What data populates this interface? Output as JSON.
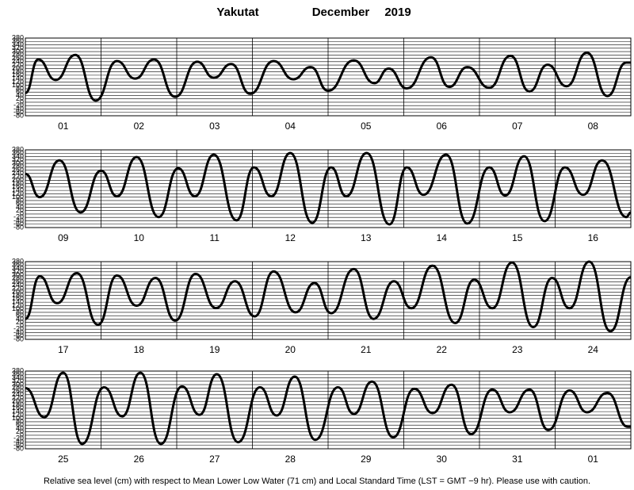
{
  "header": {
    "station": "Yakutat",
    "month": "December",
    "year": "2019"
  },
  "note": "Relative sea level (cm) with respect to Mean Lower Low Water (71 cm) and Local Standard Time (LST = GMT −9 hr). Please use with caution.",
  "chart_data": [
    {
      "type": "line",
      "categories": [
        "01",
        "02",
        "03",
        "04",
        "05",
        "06",
        "07",
        "08"
      ],
      "xlim": [
        0,
        8
      ],
      "ylim": [
        -80,
        380
      ],
      "yticks": [
        380,
        360,
        340,
        320,
        300,
        280,
        260,
        240,
        220,
        200,
        180,
        160,
        140,
        120,
        100,
        80,
        60,
        40,
        20,
        0,
        -20,
        -40,
        -60,
        -80
      ],
      "grid": true,
      "series": [
        {
          "color": "#000000",
          "x": [
            0,
            0.17,
            0.4,
            0.66,
            0.93,
            1.21,
            1.45,
            1.7,
            1.98,
            2.27,
            2.49,
            2.72,
            2.97,
            3.28,
            3.54,
            3.77,
            4.0,
            4.34,
            4.61,
            4.8,
            5.04,
            5.36,
            5.6,
            5.84,
            6.13,
            6.41,
            6.66,
            6.9,
            7.15,
            7.42,
            7.69,
            7.94,
            8.0
          ],
          "values": [
            55,
            253,
            132,
            280,
            10,
            244,
            140,
            253,
            32,
            240,
            145,
            226,
            50,
            244,
            136,
            208,
            68,
            248,
            113,
            199,
            82,
            266,
            91,
            208,
            86,
            275,
            64,
            222,
            95,
            293,
            37,
            235,
            235
          ]
        }
      ]
    },
    {
      "type": "line",
      "categories": [
        "09",
        "10",
        "11",
        "12",
        "13",
        "14",
        "15",
        "16"
      ],
      "xlim": [
        0,
        8
      ],
      "ylim": [
        -80,
        380
      ],
      "yticks": [
        380,
        360,
        340,
        320,
        300,
        280,
        260,
        240,
        220,
        200,
        180,
        160,
        140,
        120,
        100,
        80,
        60,
        40,
        20,
        0,
        -20,
        -40,
        -60,
        -80
      ],
      "grid": true,
      "series": [
        {
          "color": "#000000",
          "x": [
            0,
            0.19,
            0.45,
            0.73,
            1.0,
            1.21,
            1.47,
            1.76,
            2.02,
            2.24,
            2.49,
            2.79,
            3.02,
            3.25,
            3.5,
            3.79,
            4.04,
            4.24,
            4.51,
            4.81,
            5.04,
            5.26,
            5.56,
            5.84,
            6.13,
            6.34,
            6.59,
            6.86,
            7.13,
            7.37,
            7.62,
            7.94,
            8.0
          ],
          "values": [
            238,
            100,
            318,
            10,
            257,
            105,
            337,
            -18,
            271,
            105,
            351,
            -37,
            276,
            105,
            361,
            -52,
            276,
            105,
            361,
            -61,
            276,
            114,
            351,
            -56,
            276,
            110,
            342,
            -42,
            276,
            114,
            318,
            -18,
            10
          ]
        }
      ]
    },
    {
      "type": "line",
      "categories": [
        "17",
        "18",
        "19",
        "20",
        "21",
        "22",
        "23",
        "24"
      ],
      "xlim": [
        0,
        8
      ],
      "ylim": [
        -80,
        380
      ],
      "yticks": [
        380,
        360,
        340,
        320,
        300,
        280,
        260,
        240,
        220,
        200,
        180,
        160,
        140,
        120,
        100,
        80,
        60,
        40,
        20,
        0,
        -20,
        -40,
        -60,
        -80
      ],
      "grid": true,
      "series": [
        {
          "color": "#000000",
          "x": [
            0,
            0.19,
            0.42,
            0.68,
            0.96,
            1.21,
            1.47,
            1.72,
            1.98,
            2.25,
            2.52,
            2.77,
            3.03,
            3.28,
            3.57,
            3.82,
            4.04,
            4.34,
            4.6,
            4.87,
            5.1,
            5.38,
            5.68,
            5.93,
            6.17,
            6.43,
            6.71,
            6.96,
            7.19,
            7.45,
            7.73,
            8.0
          ],
          "values": [
            41,
            293,
            134,
            312,
            7,
            298,
            119,
            283,
            31,
            307,
            105,
            264,
            56,
            322,
            80,
            254,
            75,
            336,
            41,
            264,
            104,
            356,
            17,
            273,
            104,
            375,
            -7,
            283,
            104,
            380,
            -32,
            288
          ]
        }
      ]
    },
    {
      "type": "line",
      "categories": [
        "25",
        "26",
        "27",
        "28",
        "29",
        "30",
        "31",
        "01"
      ],
      "xlim": [
        0,
        8
      ],
      "ylim": [
        -80,
        380
      ],
      "yticks": [
        380,
        360,
        340,
        320,
        300,
        280,
        260,
        240,
        220,
        200,
        180,
        160,
        140,
        120,
        100,
        80,
        60,
        40,
        20,
        0,
        -20,
        -40,
        -60,
        -80
      ],
      "grid": true,
      "series": [
        {
          "color": "#000000",
          "x": [
            0,
            0.25,
            0.5,
            0.75,
            1.04,
            1.28,
            1.52,
            1.79,
            2.07,
            2.3,
            2.53,
            2.81,
            3.1,
            3.32,
            3.56,
            3.83,
            4.13,
            4.34,
            4.58,
            4.86,
            5.14,
            5.38,
            5.63,
            5.89,
            6.17,
            6.4,
            6.66,
            6.91,
            7.19,
            7.42,
            7.69,
            7.96,
            8.0
          ],
          "values": [
            279,
            107,
            370,
            -51,
            284,
            112,
            370,
            -51,
            289,
            121,
            361,
            -41,
            284,
            117,
            347,
            -27,
            284,
            126,
            318,
            -12,
            275,
            131,
            299,
            7,
            270,
            136,
            270,
            31,
            265,
            136,
            251,
            50,
            50
          ]
        }
      ]
    }
  ]
}
